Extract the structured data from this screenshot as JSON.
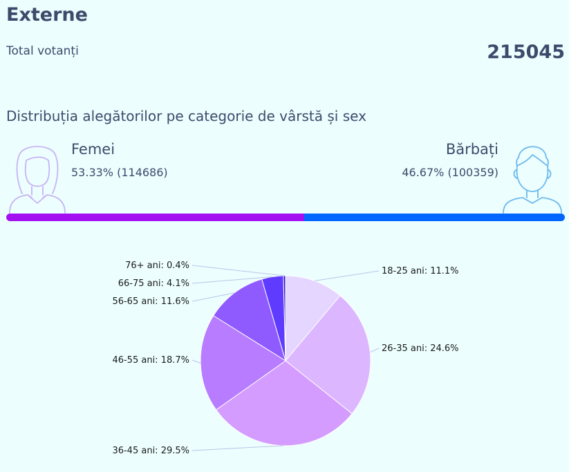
{
  "title": "Externe",
  "total": {
    "label": "Total votanți",
    "value": "215045"
  },
  "subtitle": "Distribuția alegătorilor pe categorie de vârstă și sex",
  "female": {
    "label": "Femei",
    "pct_text": "53.33% (114686)",
    "share": 0.5333,
    "color": "#a40ff2"
  },
  "male": {
    "label": "Bărbați",
    "pct_text": "46.67% (100359)",
    "share": 0.4667,
    "color": "#0066ff"
  },
  "chart_data": {
    "type": "pie",
    "slices": [
      {
        "label": "18-25 ani",
        "value": 11.1,
        "display": "18-25 ani: 11.1%",
        "color": "#e4d6ff"
      },
      {
        "label": "26-35 ani",
        "value": 24.6,
        "display": "26-35 ani: 24.6%",
        "color": "#dcb6ff"
      },
      {
        "label": "36-45 ani",
        "value": 29.5,
        "display": "36-45 ani: 29.5%",
        "color": "#d59cff"
      },
      {
        "label": "46-55 ani",
        "value": 18.7,
        "display": "46-55 ani: 18.7%",
        "color": "#b77cff"
      },
      {
        "label": "56-65 ani",
        "value": 11.6,
        "display": "56-65 ani: 11.6%",
        "color": "#8f5bff"
      },
      {
        "label": "66-75 ani",
        "value": 4.1,
        "display": "66-75 ani: 4.1%",
        "color": "#5f3bff"
      },
      {
        "label": "76+ ani",
        "value": 0.4,
        "display": "76+ ani: 0.4%",
        "color": "#2d1bb8"
      }
    ]
  }
}
